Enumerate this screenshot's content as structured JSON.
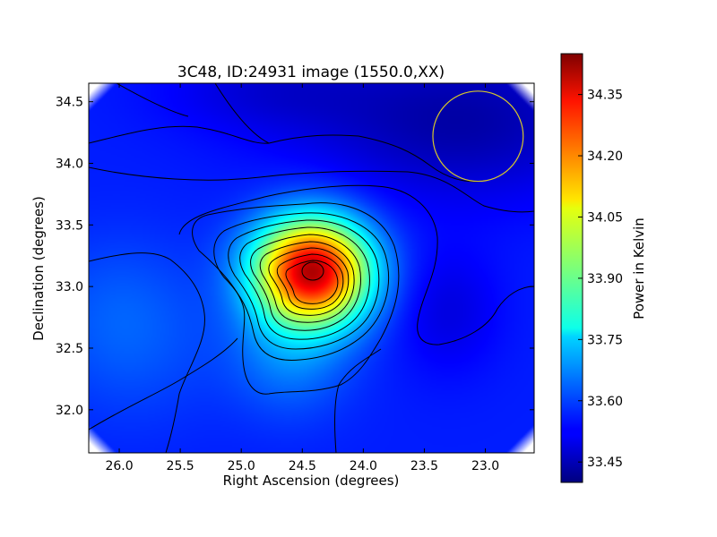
{
  "chart_data": {
    "type": "heatmap",
    "title": "3C48, ID:24931 image (1550.0,XX)",
    "xlabel": "Right Ascension (degrees)",
    "ylabel": "Declination (degrees)",
    "xlim": [
      26.25,
      22.6
    ],
    "ylim": [
      31.65,
      34.65
    ],
    "x_ticks": [
      26.0,
      25.5,
      25.0,
      24.5,
      24.0,
      23.5,
      23.0
    ],
    "x_tick_labels": [
      "26.0",
      "25.5",
      "25.0",
      "24.5",
      "24.0",
      "23.5",
      "23.0"
    ],
    "y_ticks": [
      32.0,
      32.5,
      33.0,
      33.5,
      34.0,
      34.5
    ],
    "y_tick_labels": [
      "32.0",
      "32.5",
      "33.0",
      "33.5",
      "34.0",
      "34.5"
    ],
    "colorbar": {
      "label": "Power in Kelvin",
      "range": [
        33.4,
        34.45
      ],
      "ticks": [
        33.45,
        33.6,
        33.75,
        33.9,
        34.05,
        34.2,
        34.35
      ],
      "tick_labels": [
        "33.45",
        "33.60",
        "33.75",
        "33.90",
        "34.05",
        "34.20",
        "34.35"
      ],
      "colormap": "jet"
    },
    "peak": {
      "ra": 24.42,
      "dec": 33.13,
      "value": 34.4
    },
    "beam_circle": {
      "ra": 23.06,
      "dec": 34.22,
      "radius_deg": 0.37,
      "color": "#d6c62b"
    },
    "contour_color": "#000000",
    "grid": false
  }
}
